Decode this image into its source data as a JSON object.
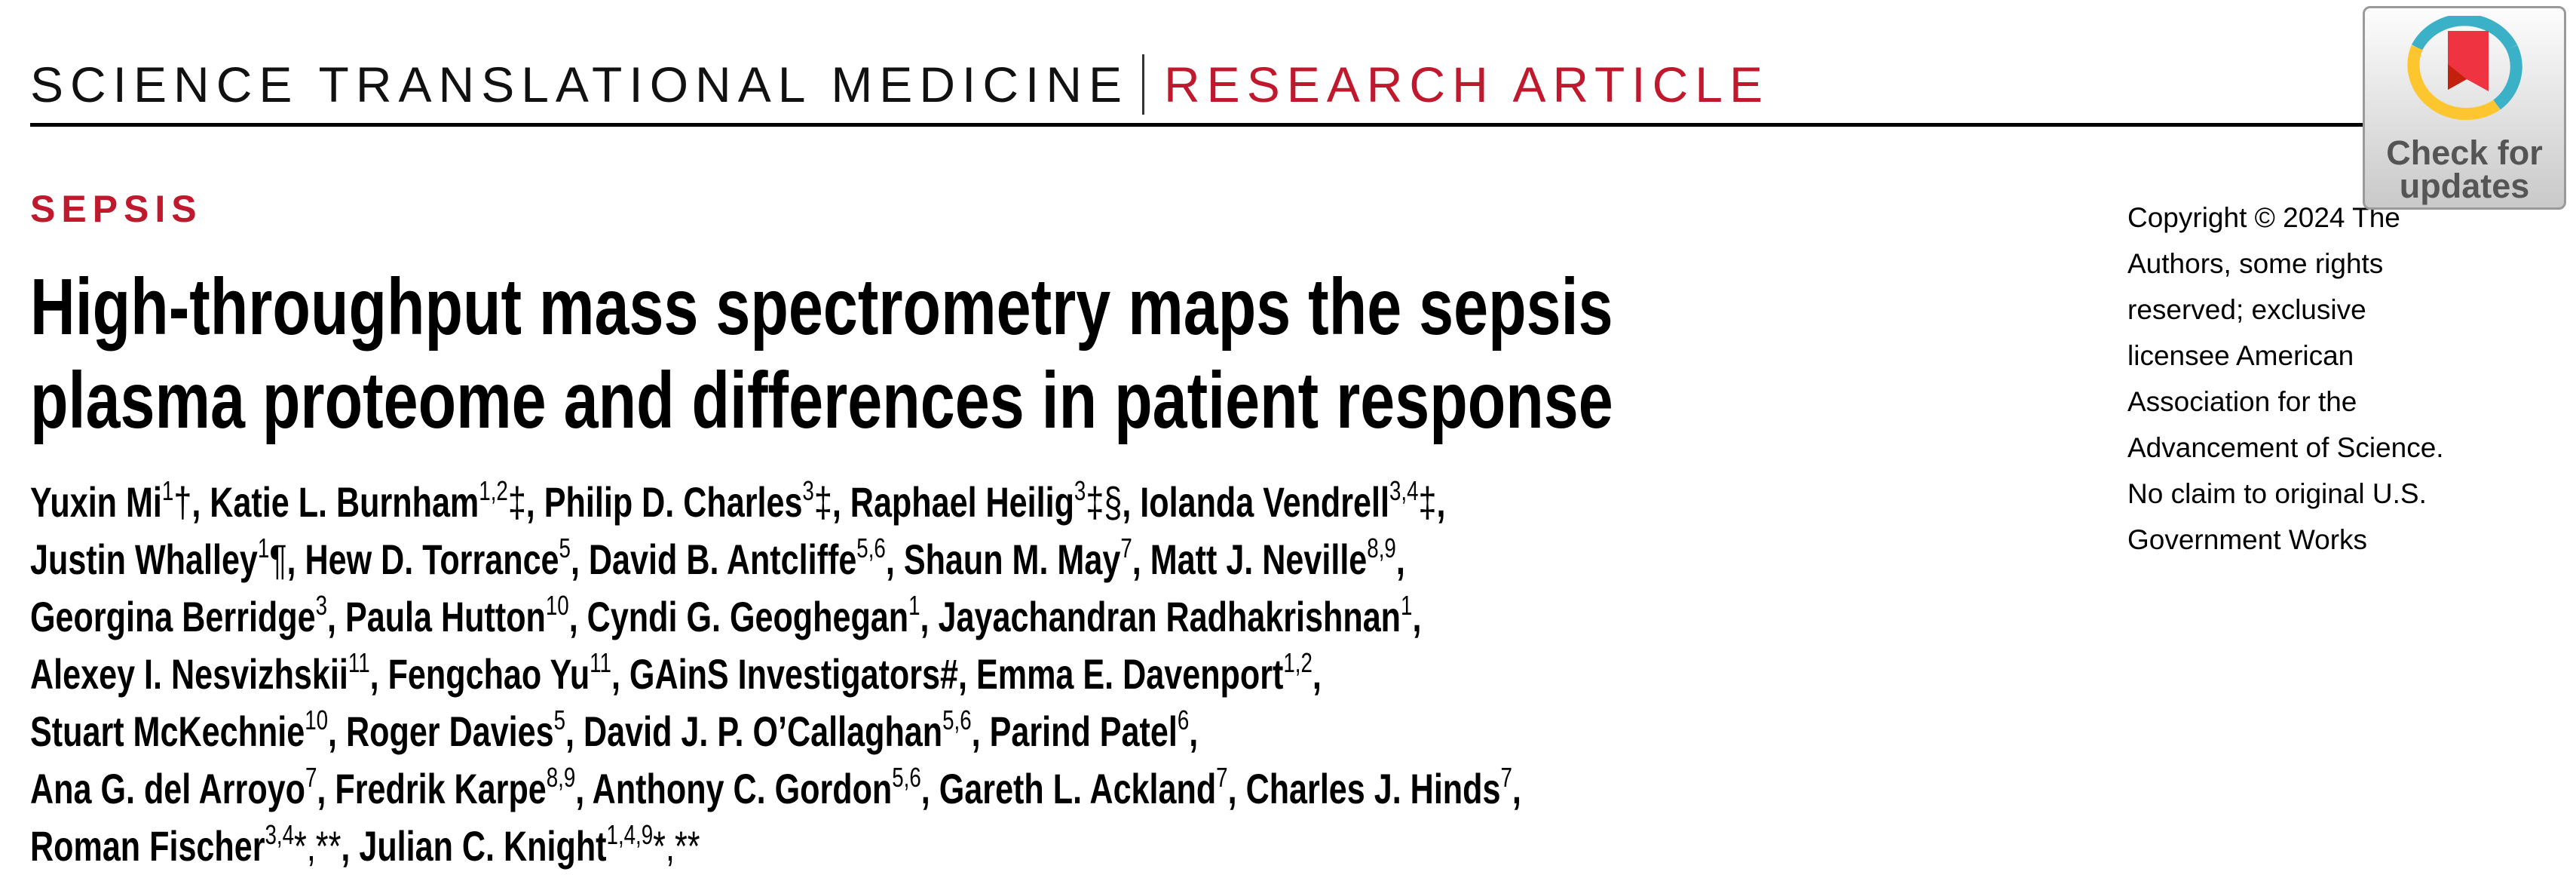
{
  "header": {
    "journal": "SCIENCE TRANSLATIONAL MEDICINE",
    "article_type": "RESEARCH ARTICLE"
  },
  "section": "SEPSIS",
  "title": {
    "line1": "High-throughput mass spectrometry maps the sepsis",
    "line2": "plasma proteome and differences in patient response"
  },
  "authors": [
    [
      {
        "n": "Yuxin Mi",
        "s": "1",
        "m": "†"
      },
      {
        "n": "Katie L. Burnham",
        "s": "1,2",
        "m": "‡"
      },
      {
        "n": "Philip D. Charles",
        "s": "3",
        "m": "‡"
      },
      {
        "n": "Raphael Heilig",
        "s": "3",
        "m": "‡§"
      },
      {
        "n": "Iolanda Vendrell",
        "s": "3,4",
        "m": "‡"
      }
    ],
    [
      {
        "n": "Justin Whalley",
        "s": "1",
        "m": "¶"
      },
      {
        "n": "Hew D. Torrance",
        "s": "5",
        "m": ""
      },
      {
        "n": "David B. Antcliffe",
        "s": "5,6",
        "m": ""
      },
      {
        "n": "Shaun M. May",
        "s": "7",
        "m": ""
      },
      {
        "n": "Matt J. Neville",
        "s": "8,9",
        "m": ""
      }
    ],
    [
      {
        "n": "Georgina Berridge",
        "s": "3",
        "m": ""
      },
      {
        "n": "Paula Hutton",
        "s": "10",
        "m": ""
      },
      {
        "n": "Cyndi G. Geoghegan",
        "s": "1",
        "m": ""
      },
      {
        "n": "Jayachandran Radhakrishnan",
        "s": "1",
        "m": ""
      }
    ],
    [
      {
        "n": "Alexey I. Nesvizhskii",
        "s": "11",
        "m": ""
      },
      {
        "n": "Fengchao Yu",
        "s": "11",
        "m": ""
      },
      {
        "n": "GAinS Investigators#",
        "s": "",
        "m": ""
      },
      {
        "n": "Emma E. Davenport",
        "s": "1,2",
        "m": ""
      }
    ],
    [
      {
        "n": "Stuart McKechnie",
        "s": "10",
        "m": ""
      },
      {
        "n": "Roger Davies",
        "s": "5",
        "m": ""
      },
      {
        "n": "David J. P. O’Callaghan",
        "s": "5,6",
        "m": ""
      },
      {
        "n": "Parind Patel",
        "s": "6",
        "m": ""
      }
    ],
    [
      {
        "n": "Ana G. del Arroyo",
        "s": "7",
        "m": ""
      },
      {
        "n": "Fredrik Karpe",
        "s": "8,9",
        "m": ""
      },
      {
        "n": "Anthony C. Gordon",
        "s": "5,6",
        "m": ""
      },
      {
        "n": "Gareth L. Ackland",
        "s": "7",
        "m": ""
      },
      {
        "n": "Charles J. Hinds",
        "s": "7",
        "m": ""
      }
    ],
    [
      {
        "n": "Roman Fischer",
        "s": "3,4",
        "m": "*,**"
      },
      {
        "n": "Julian C. Knight",
        "s": "1,4,9",
        "m": "*,**"
      }
    ]
  ],
  "copyright": "Copyright © 2024 The Authors, some rights reserved; exclusive licensee American Association for the Advancement of Science. No claim to original U.S. Government Works",
  "badge": {
    "line1": "Check for",
    "line2": "updates"
  },
  "colors": {
    "accent": "#c0192e"
  }
}
